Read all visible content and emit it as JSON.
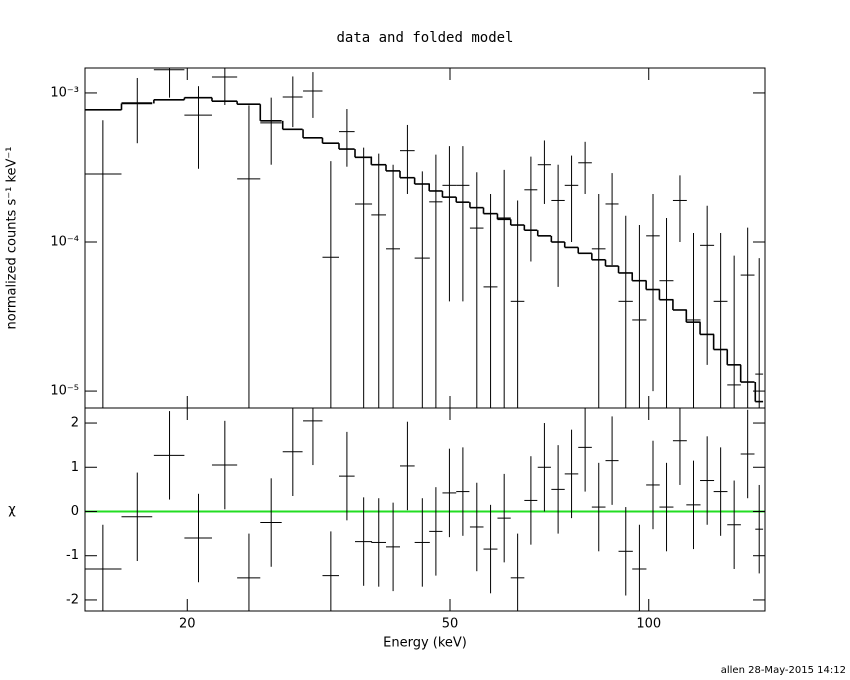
{
  "chart_data": [
    {
      "type": "spectrum",
      "title": "data and folded model",
      "ylabel": "normalized counts s⁻¹ keV⁻¹",
      "log_x": true,
      "log_y": true,
      "xlim": [
        14,
        150
      ],
      "ylim": [
        7.7e-06,
        0.00147
      ],
      "yticks": [
        {
          "value": 0.001,
          "label": "10⁻³"
        },
        {
          "value": 0.0001,
          "label": "10⁻⁴"
        },
        {
          "value": 1e-05,
          "label": "10⁻⁵"
        }
      ],
      "color": "#000000",
      "x": [
        14.9,
        16.8,
        18.8,
        20.8,
        22.8,
        24.8,
        26.8,
        28.9,
        31.0,
        33.0,
        34.9,
        37.0,
        39.0,
        41.0,
        43.1,
        45.4,
        47.6,
        49.9,
        52.3,
        54.9,
        57.6,
        60.4,
        63.3,
        66.3,
        69.5,
        72.9,
        76.4,
        80.1,
        84.0,
        88.0,
        92.3,
        96.8,
        101.5,
        106.4,
        111.5,
        116.9,
        122.6,
        128.5,
        134.7,
        141.2,
        147.0
      ],
      "xerr": [
        1.0,
        0.9,
        1.0,
        1.0,
        1.0,
        1.0,
        1.0,
        1.0,
        1.05,
        0.95,
        0.95,
        1.1,
        1.0,
        1.0,
        1.1,
        1.2,
        1.1,
        1.2,
        1.2,
        1.3,
        1.4,
        1.4,
        1.5,
        1.5,
        1.6,
        1.7,
        1.8,
        1.9,
        2.0,
        2.0,
        2.3,
        2.4,
        2.4,
        2.6,
        2.7,
        2.9,
        3.0,
        3.1,
        3.2,
        3.4,
        2.0
      ],
      "values": [
        0.000286,
        0.00086,
        0.00143,
        0.00071,
        0.00128,
        0.000265,
        0.00063,
        0.00094,
        0.00103,
        7.9e-05,
        0.00055,
        0.00018,
        0.000152,
        9e-05,
        0.00041,
        7.8e-05,
        0.000186,
        0.00024,
        0.00024,
        0.000124,
        5e-05,
        0.000145,
        4e-05,
        0.000224,
        0.00033,
        0.00019,
        0.00024,
        0.00034,
        9e-05,
        0.00018,
        4e-05,
        3e-05,
        0.00011,
        5.5e-05,
        0.00019,
        3e-05,
        9.5e-05,
        4e-05,
        1.1e-05,
        6e-05,
        1.3e-05
      ],
      "errors": [
        0.00037,
        0.0004,
        0.0005,
        0.0004,
        0.00045,
        0.00056,
        0.0003,
        0.00035,
        0.00035,
        0.00027,
        0.00023,
        0.00025,
        0.00024,
        0.00024,
        0.0002,
        0.00022,
        0.0002,
        0.0002,
        0.0002,
        0.00017,
        0.00016,
        0.00016,
        0.00015,
        0.00015,
        0.00015,
        0.00014,
        0.00014,
        0.00013,
        0.00012,
        0.00011,
        0.00011,
        0.0001,
        0.0001,
        9e-05,
        9e-05,
        8.5e-05,
        8e-05,
        7.5e-05,
        7e-05,
        6.5e-05,
        6.5e-05
      ],
      "model": [
        0.00077,
        0.00085,
        0.0009,
        0.00093,
        0.00088,
        0.00084,
        0.00065,
        0.00057,
        0.0005,
        0.00046,
        0.00042,
        0.00037,
        0.00033,
        0.0003,
        0.00027,
        0.000245,
        0.00022,
        0.0002,
        0.000185,
        0.00017,
        0.000155,
        0.000142,
        0.00013,
        0.00012,
        0.00011,
        0.0001,
        9.2e-05,
        8.4e-05,
        7.6e-05,
        6.9e-05,
        6.2e-05,
        5.5e-05,
        4.8e-05,
        4.1e-05,
        3.5e-05,
        2.9e-05,
        2.4e-05,
        1.9e-05,
        1.5e-05,
        1.15e-05,
        8.5e-06
      ]
    },
    {
      "type": "residual",
      "xlabel": "Energy (keV)",
      "ylabel": "χ",
      "log_x": true,
      "xlim": [
        14,
        150
      ],
      "ylim": [
        -2.25,
        2.34
      ],
      "xticks": [
        20,
        50,
        100
      ],
      "yticks": [
        -2,
        -1,
        0,
        1,
        2
      ],
      "color": "#000000",
      "reference_line": 0,
      "reference_color": "#22dd22",
      "x": [
        14.9,
        16.8,
        18.8,
        20.8,
        22.8,
        24.8,
        26.8,
        28.9,
        31.0,
        33.0,
        34.9,
        37.0,
        39.0,
        41.0,
        43.1,
        45.4,
        47.6,
        49.9,
        52.3,
        54.9,
        57.6,
        60.4,
        63.3,
        66.3,
        69.5,
        72.9,
        76.4,
        80.1,
        84.0,
        88.0,
        92.3,
        96.8,
        101.5,
        106.4,
        111.5,
        116.9,
        122.6,
        128.5,
        134.7,
        141.2,
        147.0
      ],
      "xerr": [
        1.0,
        0.9,
        1.0,
        1.0,
        1.0,
        1.0,
        1.0,
        1.0,
        1.05,
        0.95,
        0.95,
        1.1,
        1.0,
        1.0,
        1.1,
        1.2,
        1.1,
        1.2,
        1.2,
        1.3,
        1.4,
        1.4,
        1.5,
        1.5,
        1.6,
        1.7,
        1.8,
        1.9,
        2.0,
        2.0,
        2.3,
        2.4,
        2.4,
        2.6,
        2.7,
        2.9,
        3.0,
        3.1,
        3.2,
        3.4,
        2.0
      ],
      "values": [
        -1.3,
        -0.12,
        1.27,
        -0.6,
        1.05,
        -1.5,
        -0.25,
        1.35,
        2.05,
        -1.45,
        0.8,
        -0.68,
        -0.7,
        -0.8,
        1.03,
        -0.7,
        -0.45,
        0.42,
        0.45,
        -0.35,
        -0.85,
        -0.15,
        -1.5,
        0.25,
        1.0,
        0.5,
        0.85,
        1.45,
        0.1,
        1.15,
        -0.9,
        -1.3,
        0.6,
        0.1,
        1.6,
        0.15,
        0.7,
        0.45,
        -0.3,
        1.3,
        -0.4
      ],
      "errors": [
        1,
        1,
        1,
        1,
        1,
        1,
        1,
        1,
        1,
        1,
        1,
        1,
        1,
        1,
        1,
        1,
        1,
        1,
        1,
        1,
        1,
        1,
        1,
        1,
        1,
        1,
        1,
        1,
        1,
        1,
        1,
        1,
        1,
        1,
        1,
        1,
        1,
        1,
        1,
        1,
        1
      ]
    }
  ],
  "footer": "allen 28-May-2015 14:12"
}
